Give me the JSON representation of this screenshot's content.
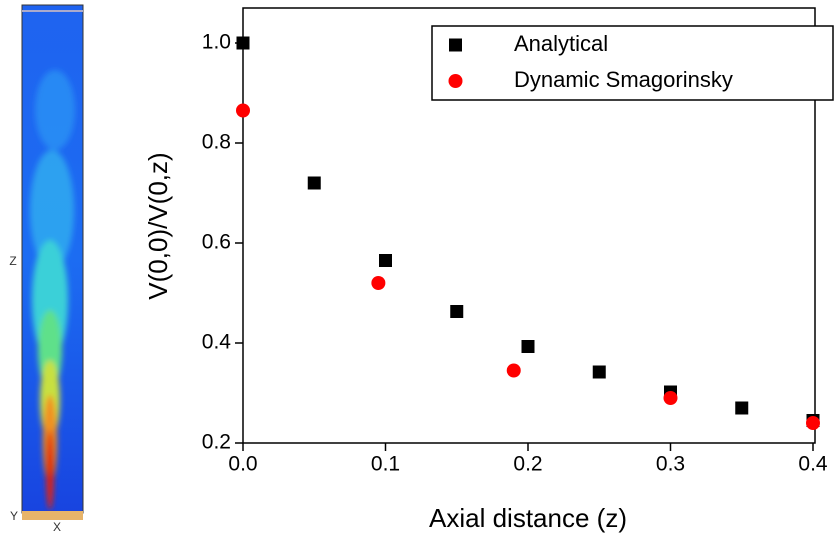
{
  "panel": {
    "z_label": "Z",
    "y_label": "Y",
    "x_label": "X"
  },
  "chart_data": {
    "type": "scatter",
    "xlabel": "Axial distance (z)",
    "ylabel": "V(0,0)/V(0,z)",
    "xlim": [
      0,
      0.4
    ],
    "ylim": [
      0.2,
      1.07
    ],
    "xticks": [
      {
        "value": 0,
        "label": "0.0"
      },
      0.1,
      0.2,
      0.3,
      0.4
    ],
    "yticks": [
      0.2,
      0.4,
      0.6,
      0.8,
      {
        "value": 1,
        "label": "1.0"
      }
    ],
    "legend": "upper right",
    "series": [
      {
        "name": "Analytical",
        "color": "#000000",
        "marker": "square",
        "x": [
          0,
          0.05,
          0.1,
          0.15,
          0.2,
          0.25,
          0.3,
          0.35,
          0.4
        ],
        "values": [
          1.0,
          0.72,
          0.565,
          0.463,
          0.393,
          0.342,
          0.302,
          0.27,
          0.245
        ]
      },
      {
        "name": "Dynamic Smagorinsky",
        "color": "#ff0000",
        "marker": "circle",
        "x": [
          0,
          0.095,
          0.19,
          0.3,
          0.4
        ],
        "values": [
          0.865,
          0.52,
          0.345,
          0.29,
          0.24
        ]
      }
    ]
  }
}
